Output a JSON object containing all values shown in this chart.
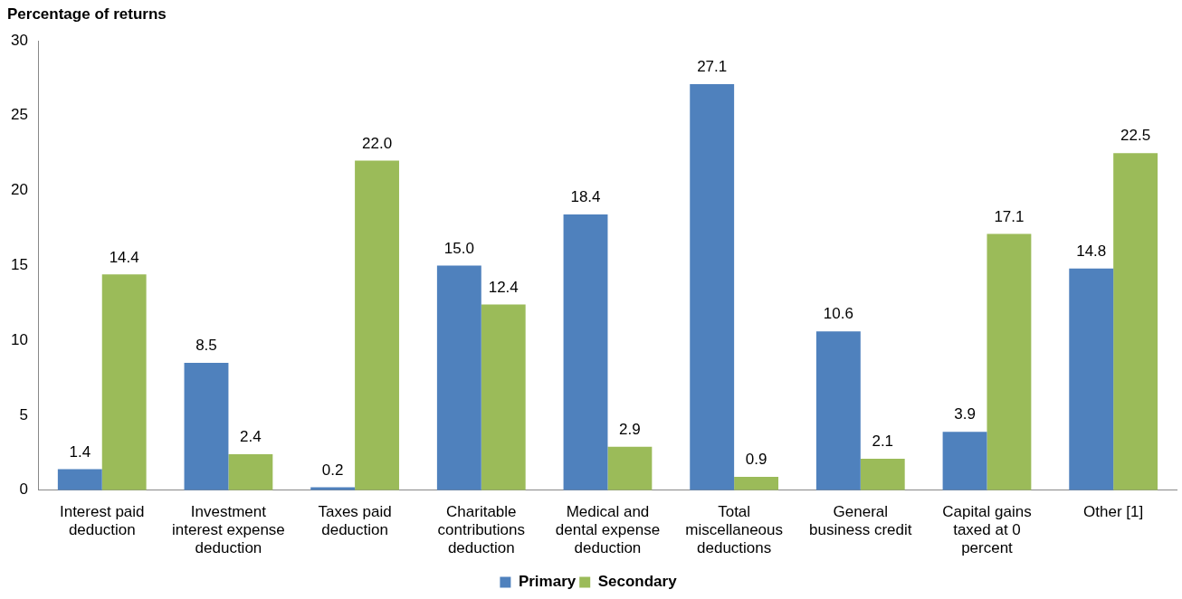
{
  "chart_data": {
    "type": "bar",
    "ylabel": "Percentage of returns",
    "categories": [
      "Interest paid deduction",
      "Investment interest expense deduction",
      "Taxes paid deduction",
      "Charitable contributions deduction",
      "Medical and dental expense deduction",
      "Total miscellaneous deductions",
      "General business credit",
      "Capital gains taxed at 0 percent",
      "Other [1]"
    ],
    "series": [
      {
        "name": "Primary",
        "color": "#4f81bd",
        "values": [
          1.4,
          8.5,
          0.2,
          15.0,
          18.4,
          27.1,
          10.6,
          3.9,
          14.8
        ],
        "value_labels": [
          "1.4",
          "8.5",
          "0.2",
          "15.0",
          "18.4",
          "27.1",
          "10.6",
          "3.9",
          "14.8"
        ]
      },
      {
        "name": "Secondary",
        "color": "#9bbb59",
        "values": [
          14.4,
          2.4,
          22.0,
          12.4,
          2.9,
          0.9,
          2.1,
          17.1,
          22.5
        ],
        "value_labels": [
          "14.4",
          "2.4",
          "22.0",
          "12.4",
          "2.9",
          "0.9",
          "2.1",
          "17.1",
          "22.5"
        ]
      }
    ],
    "ylim": [
      0,
      30
    ],
    "yticks": [
      0,
      5,
      10,
      15,
      20,
      25,
      30
    ],
    "grid": false,
    "legend": "bottom"
  }
}
